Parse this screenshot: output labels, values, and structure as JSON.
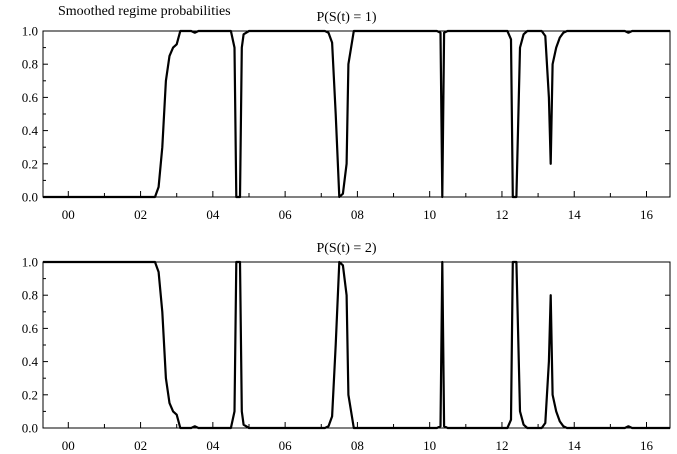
{
  "figure_title": "Smoothed regime probabilities",
  "chart_data": [
    {
      "type": "line",
      "title": "P(S(t) = 1)",
      "xlabel": "",
      "ylabel": "",
      "xlim": [
        1999.3,
        2016.65
      ],
      "ylim": [
        0,
        1
      ],
      "yticks": [
        0.0,
        0.2,
        0.4,
        0.6,
        0.8,
        1.0
      ],
      "ytick_labels": [
        "0.0",
        "0.2",
        "0.4",
        "0.6",
        "0.8",
        "1.0"
      ],
      "xticks": [
        2000,
        2002,
        2004,
        2006,
        2008,
        2010,
        2012,
        2014,
        2016
      ],
      "xtick_labels": [
        "00",
        "02",
        "04",
        "06",
        "08",
        "10",
        "12",
        "14",
        "16"
      ],
      "grid": false,
      "series": [
        {
          "x": [
            1999.3,
            2002.4,
            2002.5,
            2002.6,
            2002.7,
            2002.8,
            2002.9,
            2003.0,
            2003.1,
            2003.3,
            2003.4,
            2003.5,
            2003.6,
            2004.5,
            2004.6,
            2004.65,
            2004.75,
            2004.8,
            2004.85,
            2005.0,
            2007.1,
            2007.2,
            2007.3,
            2007.4,
            2007.5,
            2007.6,
            2007.7,
            2007.75,
            2007.9,
            2010.2,
            2010.3,
            2010.35,
            2010.4,
            2010.5,
            2012.15,
            2012.25,
            2012.3,
            2012.35,
            2012.4,
            2012.5,
            2012.6,
            2012.7,
            2012.8,
            2013.1,
            2013.2,
            2013.3,
            2013.35,
            2013.4,
            2013.5,
            2013.6,
            2013.7,
            2013.8,
            2013.9,
            2014.1,
            2015.4,
            2015.5,
            2015.6,
            2016.65
          ],
          "y": [
            0.0,
            0.0,
            0.06,
            0.3,
            0.7,
            0.85,
            0.9,
            0.92,
            1.0,
            1.0,
            1.0,
            0.99,
            1.0,
            1.0,
            0.9,
            0.0,
            0.0,
            0.9,
            0.98,
            1.0,
            1.0,
            0.99,
            0.93,
            0.5,
            0.0,
            0.02,
            0.2,
            0.8,
            1.0,
            1.0,
            0.99,
            0.0,
            0.99,
            1.0,
            1.0,
            0.95,
            0.0,
            0.0,
            0.0,
            0.9,
            0.98,
            1.0,
            1.0,
            1.0,
            0.97,
            0.6,
            0.2,
            0.8,
            0.9,
            0.96,
            0.99,
            1.0,
            1.0,
            1.0,
            1.0,
            0.99,
            1.0,
            1.0
          ]
        }
      ]
    },
    {
      "type": "line",
      "title": "P(S(t) = 2)",
      "xlabel": "",
      "ylabel": "",
      "xlim": [
        1999.3,
        2016.65
      ],
      "ylim": [
        0,
        1
      ],
      "yticks": [
        0.0,
        0.2,
        0.4,
        0.6,
        0.8,
        1.0
      ],
      "ytick_labels": [
        "0.0",
        "0.2",
        "0.4",
        "0.6",
        "0.8",
        "1.0"
      ],
      "xticks": [
        2000,
        2002,
        2004,
        2006,
        2008,
        2010,
        2012,
        2014,
        2016
      ],
      "xtick_labels": [
        "00",
        "02",
        "04",
        "06",
        "08",
        "10",
        "12",
        "14",
        "16"
      ],
      "grid": false,
      "series": [
        {
          "x": [
            1999.3,
            2002.4,
            2002.5,
            2002.6,
            2002.7,
            2002.8,
            2002.9,
            2003.0,
            2003.1,
            2003.3,
            2003.4,
            2003.5,
            2003.6,
            2004.5,
            2004.6,
            2004.65,
            2004.75,
            2004.8,
            2004.85,
            2005.0,
            2007.1,
            2007.2,
            2007.3,
            2007.4,
            2007.5,
            2007.6,
            2007.7,
            2007.75,
            2007.9,
            2010.2,
            2010.3,
            2010.35,
            2010.4,
            2010.5,
            2012.15,
            2012.25,
            2012.3,
            2012.35,
            2012.4,
            2012.5,
            2012.6,
            2012.7,
            2012.8,
            2013.1,
            2013.2,
            2013.3,
            2013.35,
            2013.4,
            2013.5,
            2013.6,
            2013.7,
            2013.8,
            2013.9,
            2014.1,
            2015.4,
            2015.5,
            2015.6,
            2016.65
          ],
          "y": [
            1.0,
            1.0,
            0.94,
            0.7,
            0.3,
            0.15,
            0.1,
            0.08,
            0.0,
            0.0,
            0.0,
            0.01,
            0.0,
            0.0,
            0.1,
            1.0,
            1.0,
            0.1,
            0.02,
            0.0,
            0.0,
            0.01,
            0.07,
            0.5,
            1.0,
            0.98,
            0.8,
            0.2,
            0.0,
            0.0,
            0.01,
            1.0,
            0.01,
            0.0,
            0.0,
            0.05,
            1.0,
            1.0,
            1.0,
            0.1,
            0.02,
            0.0,
            0.0,
            0.0,
            0.03,
            0.4,
            0.8,
            0.2,
            0.1,
            0.04,
            0.01,
            0.0,
            0.0,
            0.0,
            0.0,
            0.01,
            0.0,
            0.0
          ]
        }
      ]
    }
  ]
}
